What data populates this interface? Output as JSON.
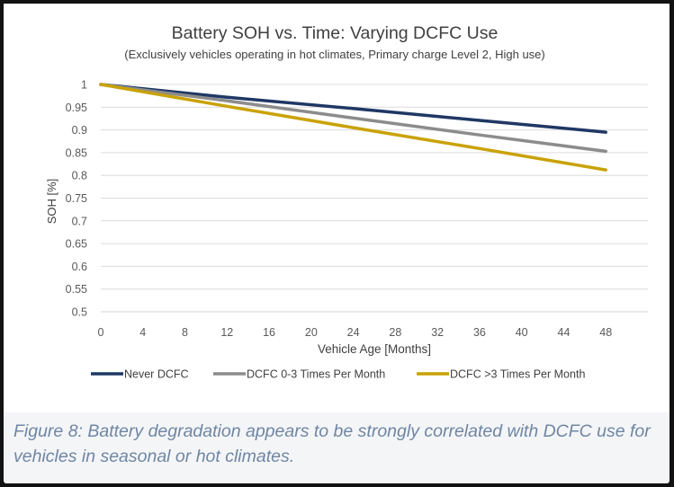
{
  "chart_data": {
    "type": "line",
    "title": "Battery SOH vs. Time: Varying DCFC Use",
    "subtitle": "(Exclusively vehicles operating in hot climates, Primary charge Level 2, High use)",
    "xlabel": "Vehicle Age [Months]",
    "ylabel": "SOH [%]",
    "xlim": [
      0,
      52
    ],
    "ylim": [
      0.5,
      1.0
    ],
    "x_ticks": [
      0,
      4,
      8,
      12,
      16,
      20,
      24,
      28,
      32,
      36,
      40,
      44,
      48
    ],
    "y_ticks": [
      0.5,
      0.55,
      0.6,
      0.65,
      0.7,
      0.75,
      0.8,
      0.85,
      0.9,
      0.95,
      1
    ],
    "grid": "horizontal",
    "legend_position": "bottom",
    "series": [
      {
        "name": "Never DCFC",
        "color": "#1f3864",
        "x": [
          0,
          12,
          24,
          36,
          48
        ],
        "values": [
          1.0,
          0.972,
          0.947,
          0.921,
          0.895
        ]
      },
      {
        "name": "DCFC 0-3 Times Per Month",
        "color": "#8c8c8c",
        "x": [
          0,
          12,
          24,
          36,
          48
        ],
        "values": [
          1.0,
          0.964,
          0.926,
          0.889,
          0.853
        ]
      },
      {
        "name": "DCFC >3 Times Per Month",
        "color": "#c9a206",
        "x": [
          0,
          12,
          24,
          36,
          48
        ],
        "values": [
          1.0,
          0.952,
          0.905,
          0.859,
          0.812
        ]
      }
    ]
  },
  "caption": "Figure 8: Battery degradation appears to be strongly correlated with DCFC use for vehicles in seasonal or hot climates."
}
